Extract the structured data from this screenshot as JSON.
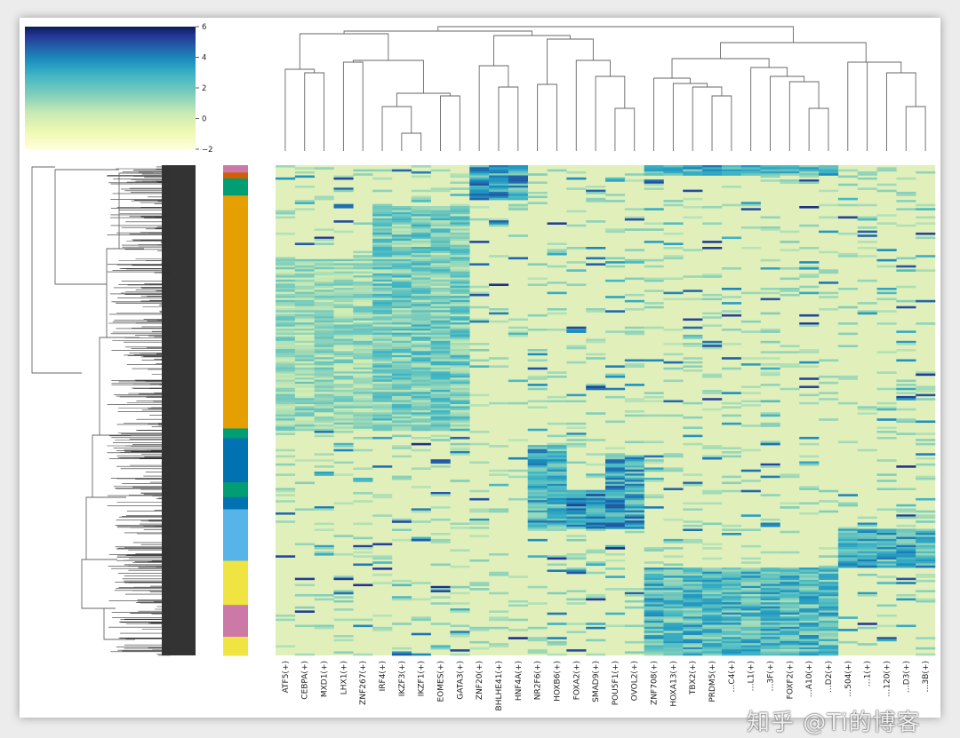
{
  "chart_data": {
    "type": "heatmap",
    "subtype": "clustermap",
    "colormap": "YlGnBu",
    "colors": {
      "low": "#ffffd9",
      "mid_low": "#d9f0b3",
      "mid": "#41b6c4",
      "high": "#225ea8",
      "max": "#081d58",
      "background_cell": "#e1f0ba",
      "dendrogram_line": "#666666",
      "dense_dendrogram": "#333333"
    },
    "colorbar": {
      "vmin": -2,
      "vmax": 6,
      "ticks": [
        "6",
        "4",
        "2",
        "0",
        "−2"
      ],
      "placement": "top-left"
    },
    "columns": [
      "ATF5(+)",
      "CEBPA(+)",
      "MXD1(+)",
      "LHX1(+)",
      "ZNF267(+)",
      "IRF4(+)",
      "IKZF3(+)",
      "IKZF1(+)",
      "EOMES(+)",
      "GATA3(+)",
      "ZNF20(+)",
      "BHLHE41(+)",
      "HNF4A(+)",
      "NR2F6(+)",
      "HOXB6(+)",
      "FOXA2(+)",
      "SMAD9(+)",
      "POU5F1(+)",
      "OVOL2(+)",
      "ZNF708(+)",
      "HOXA13(+)",
      "TBX2(+)",
      "PRDM5(+)",
      "…C4(+)",
      "…L1(+)",
      "…3F(+)",
      "FOXF2(+)",
      "…A10(+)",
      "…D2(+)",
      "…504(+)",
      "…1(+)",
      "…120(+)",
      "…D3(+)",
      "…3B(+)"
    ],
    "column_group_colors": {
      "group1": "#cc79a7",
      "group2": "#d55e00",
      "group3": "#009e73",
      "group4": "#e69f00",
      "group5": "#0072b2",
      "group6": "#56b4e9",
      "group7": "#f0e442"
    },
    "row_annotation": [
      {
        "group": "group1",
        "frac": 0.015
      },
      {
        "group": "group2",
        "frac": 0.012
      },
      {
        "group": "group3",
        "frac": 0.035
      },
      {
        "group": "group4",
        "frac": 0.475
      },
      {
        "group": "group3",
        "frac": 0.02
      },
      {
        "group": "group5",
        "frac": 0.09
      },
      {
        "group": "group3",
        "frac": 0.03
      },
      {
        "group": "group5",
        "frac": 0.025
      },
      {
        "group": "group6",
        "frac": 0.105
      },
      {
        "group": "group7",
        "frac": 0.09
      },
      {
        "group": "group1",
        "frac": 0.065
      },
      {
        "group": "group7",
        "frac": 0.038
      }
    ],
    "blocks": [
      {
        "rows": [
          0.19,
          0.54
        ],
        "cols": [
          0,
          4
        ],
        "level": 0.45
      },
      {
        "rows": [
          0.08,
          0.54
        ],
        "cols": [
          5,
          9
        ],
        "level": 0.55
      },
      {
        "rows": [
          0.0,
          0.07
        ],
        "cols": [
          10,
          12
        ],
        "level": 0.75
      },
      {
        "rows": [
          0.57,
          0.74
        ],
        "cols": [
          13,
          14
        ],
        "level": 0.7
      },
      {
        "rows": [
          0.66,
          0.74
        ],
        "cols": [
          15,
          16
        ],
        "level": 0.8
      },
      {
        "rows": [
          0.59,
          0.74
        ],
        "cols": [
          17,
          18
        ],
        "level": 0.75
      },
      {
        "rows": [
          0.82,
          1.0
        ],
        "cols": [
          19,
          28
        ],
        "level": 0.65
      },
      {
        "rows": [
          0.74,
          0.82
        ],
        "cols": [
          29,
          33
        ],
        "level": 0.7
      },
      {
        "rows": [
          0.0,
          0.02
        ],
        "cols": [
          19,
          28
        ],
        "level": 0.7
      }
    ],
    "watermark": "知乎 @Ti的博客"
  }
}
